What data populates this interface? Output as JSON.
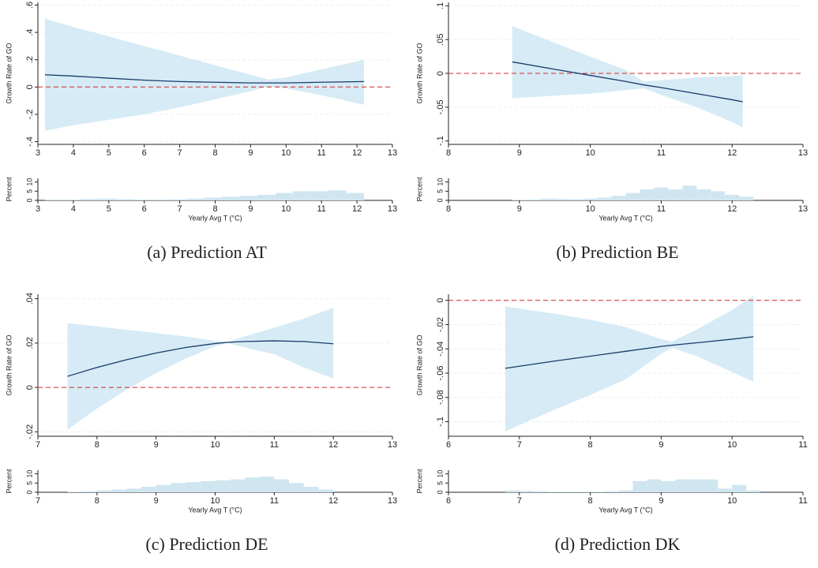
{
  "chart_data": [
    {
      "type": "line",
      "caption": "(a) Prediction AT",
      "ylabel": "Growth Rate of GO",
      "x": [
        3.2,
        4,
        5,
        6,
        7,
        8,
        9,
        9.5,
        10,
        11,
        12.2
      ],
      "values": [
        0.09,
        0.08,
        0.065,
        0.05,
        0.04,
        0.035,
        0.03,
        0.03,
        0.03,
        0.035,
        0.04
      ],
      "upper": [
        0.5,
        0.44,
        0.37,
        0.3,
        0.23,
        0.16,
        0.09,
        0.055,
        0.07,
        0.13,
        0.2
      ],
      "lower": [
        -0.32,
        -0.28,
        -0.24,
        -0.2,
        -0.15,
        -0.09,
        -0.03,
        0.005,
        -0.01,
        -0.06,
        -0.13
      ],
      "color": "#1a3a6b",
      "band_color": "#d6ebf5",
      "hline": 0,
      "hline_color": "#d62728",
      "xlim": [
        3,
        13
      ],
      "xticks": [
        3,
        4,
        5,
        6,
        7,
        8,
        9,
        10,
        11,
        12,
        13
      ],
      "ylim": [
        -0.42,
        0.62
      ],
      "yticks": [
        {
          "value": -0.4,
          "label": "-.4"
        },
        {
          "value": -0.2,
          "label": "-.2"
        },
        0,
        {
          "value": 0.2,
          "label": ".2"
        },
        {
          "value": 0.4,
          "label": ".4"
        },
        {
          "value": 0.6,
          "label": ".6"
        }
      ],
      "grid": true,
      "histogram": {
        "type": "histogram",
        "ylabel": "Percent",
        "xlabel": "Yearly Avg T (°C)",
        "color": "#cfe6f1",
        "bins": [
          3.2,
          3.7,
          4.2,
          4.7,
          5.2,
          5.7,
          6.2,
          6.7,
          7.2,
          7.7,
          8.2,
          8.7,
          9.2,
          9.7,
          10.2,
          10.7,
          11.2,
          11.7,
          12.2
        ],
        "values": [
          0.5,
          0.5,
          0.8,
          1,
          0.7,
          0.5,
          0.5,
          0.6,
          1,
          1.5,
          2,
          2.5,
          3,
          4,
          5,
          5,
          5.5,
          4
        ],
        "xlim": [
          3,
          13
        ],
        "xticks": [
          3,
          4,
          5,
          6,
          7,
          8,
          9,
          10,
          11,
          12,
          13
        ],
        "ylim": [
          0,
          12
        ],
        "yticks": [
          0,
          5,
          10
        ]
      }
    },
    {
      "type": "line",
      "caption": "(b) Prediction BE",
      "ylabel": "Growth Rate of GO",
      "x": [
        8.9,
        9.5,
        10,
        10.5,
        10.75,
        11,
        11.5,
        12,
        12.15
      ],
      "values": [
        0.017,
        0.006,
        -0.003,
        -0.012,
        -0.017,
        -0.021,
        -0.03,
        -0.039,
        -0.042
      ],
      "upper": [
        0.07,
        0.045,
        0.025,
        0.005,
        -0.012,
        -0.01,
        -0.006,
        -0.004,
        -0.003
      ],
      "lower": [
        -0.037,
        -0.033,
        -0.03,
        -0.025,
        -0.022,
        -0.032,
        -0.05,
        -0.072,
        -0.08
      ],
      "color": "#1a3a6b",
      "band_color": "#d6ebf5",
      "hline": 0,
      "hline_color": "#d62728",
      "xlim": [
        8,
        13
      ],
      "xticks": [
        8,
        9,
        10,
        11,
        12,
        13
      ],
      "ylim": [
        -0.105,
        0.105
      ],
      "yticks": [
        {
          "value": -0.1,
          "label": "-.1"
        },
        {
          "value": -0.05,
          "label": "-.05"
        },
        0,
        {
          "value": 0.05,
          "label": ".05"
        },
        {
          "value": 0.1,
          "label": ".1"
        }
      ],
      "grid": true,
      "histogram": {
        "type": "histogram",
        "ylabel": "Percent",
        "xlabel": "Yearly Avg T (°C)",
        "color": "#cfe6f1",
        "bins": [
          8.9,
          9.1,
          9.3,
          9.5,
          9.7,
          9.9,
          10.1,
          10.3,
          10.5,
          10.7,
          10.9,
          11.1,
          11.3,
          11.5,
          11.7,
          11.9,
          12.1,
          12.3
        ],
        "values": [
          0.3,
          0.5,
          1,
          0.8,
          0.7,
          1,
          1.5,
          2.5,
          4,
          6,
          7,
          6,
          8,
          6,
          5,
          3,
          2
        ],
        "xlim": [
          8,
          13
        ],
        "xticks": [
          8,
          9,
          10,
          11,
          12,
          13
        ],
        "ylim": [
          0,
          12
        ],
        "yticks": [
          0,
          5,
          10
        ]
      }
    },
    {
      "type": "line",
      "caption": "(c) Prediction DE",
      "ylabel": "Growth Rate of GO",
      "x": [
        7.5,
        8,
        8.5,
        9,
        9.5,
        10,
        10.2,
        10.5,
        11,
        11.5,
        12
      ],
      "values": [
        0.005,
        0.009,
        0.0125,
        0.0155,
        0.018,
        0.0198,
        0.0203,
        0.0207,
        0.021,
        0.0207,
        0.0197
      ],
      "upper": [
        0.029,
        0.0275,
        0.026,
        0.0245,
        0.023,
        0.021,
        0.0205,
        0.023,
        0.027,
        0.031,
        0.036
      ],
      "lower": [
        -0.019,
        -0.0095,
        -0.001,
        0.0065,
        0.013,
        0.0185,
        0.02,
        0.018,
        0.015,
        0.009,
        0.004
      ],
      "color": "#1a3a6b",
      "band_color": "#d6ebf5",
      "hline": 0,
      "hline_color": "#d62728",
      "xlim": [
        7,
        13
      ],
      "xticks": [
        7,
        8,
        9,
        10,
        11,
        12,
        13
      ],
      "ylim": [
        -0.022,
        0.042
      ],
      "yticks": [
        {
          "value": -0.02,
          "label": "-.02"
        },
        0,
        {
          "value": 0.02,
          "label": ".02"
        },
        {
          "value": 0.04,
          "label": ".04"
        }
      ],
      "grid": true,
      "histogram": {
        "type": "histogram",
        "ylabel": "Percent",
        "xlabel": "Yearly Avg T (°C)",
        "color": "#cfe6f1",
        "bins": [
          7.5,
          7.75,
          8,
          8.25,
          8.5,
          8.75,
          9,
          9.25,
          9.5,
          9.75,
          10,
          10.25,
          10.5,
          10.75,
          11,
          11.25,
          11.5,
          11.75,
          12
        ],
        "values": [
          0.3,
          0.5,
          1,
          1.5,
          2,
          3,
          4,
          5,
          5.5,
          6,
          6.5,
          7,
          8,
          8.5,
          7,
          5,
          3,
          1.5
        ],
        "xlim": [
          7,
          13
        ],
        "xticks": [
          7,
          8,
          9,
          10,
          11,
          12,
          13
        ],
        "ylim": [
          0,
          12
        ],
        "yticks": [
          0,
          5,
          10
        ]
      }
    },
    {
      "type": "line",
      "caption": "(d) Prediction DK",
      "ylabel": "Growth Rate of GO",
      "x": [
        6.8,
        7.5,
        8,
        8.5,
        9,
        9.15,
        9.5,
        10,
        10.3
      ],
      "values": [
        -0.056,
        -0.05,
        -0.046,
        -0.042,
        -0.038,
        -0.037,
        -0.035,
        -0.032,
        -0.03
      ],
      "upper": [
        -0.005,
        -0.011,
        -0.016,
        -0.022,
        -0.032,
        -0.034,
        -0.024,
        -0.008,
        0.004
      ],
      "lower": [
        -0.108,
        -0.09,
        -0.078,
        -0.065,
        -0.044,
        -0.039,
        -0.046,
        -0.059,
        -0.067
      ],
      "color": "#1a3a6b",
      "band_color": "#d6ebf5",
      "hline": 0,
      "hline_color": "#d62728",
      "xlim": [
        6,
        11
      ],
      "xticks": [
        6,
        7,
        8,
        9,
        10,
        11
      ],
      "ylim": [
        -0.112,
        0.005
      ],
      "yticks": [
        {
          "value": -0.1,
          "label": "-.1"
        },
        {
          "value": -0.08,
          "label": "-.08"
        },
        {
          "value": -0.06,
          "label": "-.06"
        },
        {
          "value": -0.04,
          "label": "-.04"
        },
        {
          "value": -0.02,
          "label": "-.02"
        },
        0
      ],
      "grid": true,
      "histogram": {
        "type": "histogram",
        "ylabel": "Percent",
        "xlabel": "Yearly Avg T (°C)",
        "color": "#cfe6f1",
        "bins": [
          6.8,
          7,
          7.2,
          7.4,
          7.6,
          7.8,
          8,
          8.2,
          8.4,
          8.6,
          8.8,
          9,
          9.2,
          9.4,
          9.6,
          9.8,
          10,
          10.2,
          10.4
        ],
        "values": [
          1,
          0.8,
          0.5,
          0.3,
          0.3,
          0.3,
          0.3,
          0.5,
          1,
          6,
          7,
          6,
          7,
          7,
          7,
          2,
          4,
          1
        ],
        "xlim": [
          6,
          11
        ],
        "xticks": [
          6,
          7,
          8,
          9,
          10,
          11
        ],
        "ylim": [
          0,
          12
        ],
        "yticks": [
          0,
          5,
          10
        ]
      }
    }
  ]
}
